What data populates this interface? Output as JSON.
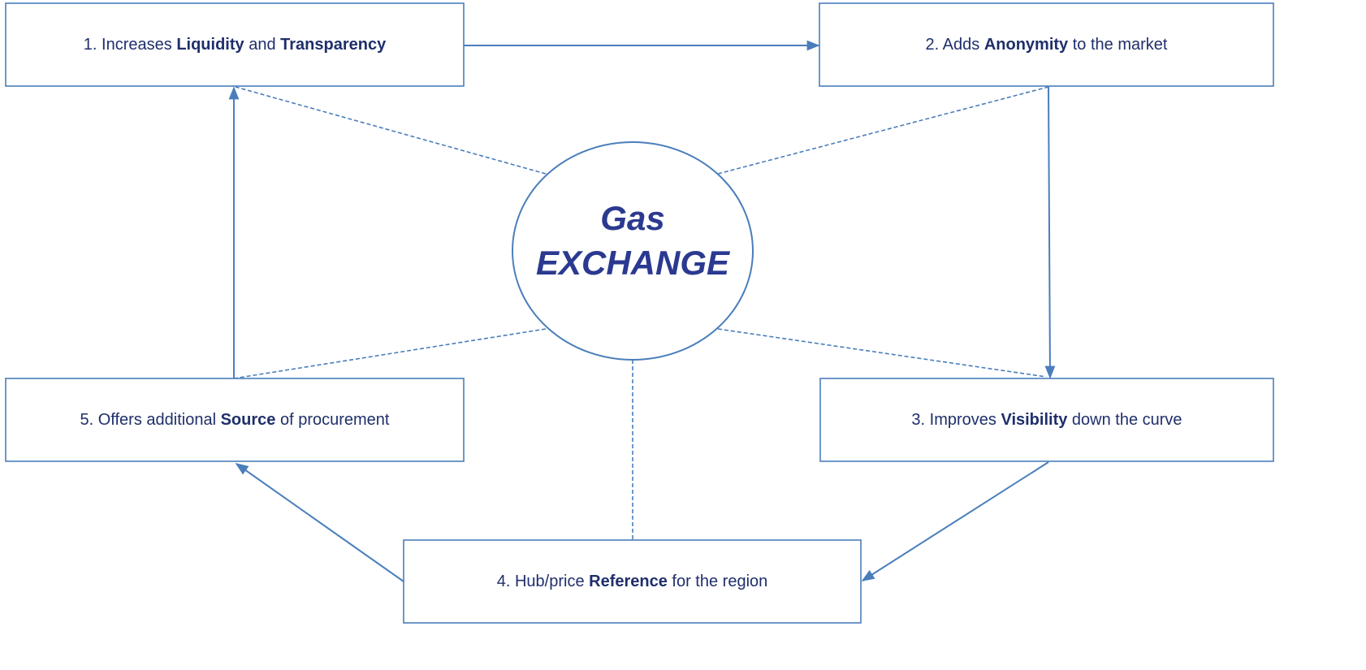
{
  "center": {
    "lines": [
      "Gas",
      "EXCHANGE"
    ]
  },
  "nodes": [
    {
      "parts": [
        {
          "text": "1. Increases "
        },
        {
          "text": "Liquidity",
          "bold": true
        },
        {
          "text": " and "
        },
        {
          "text": "Transparency",
          "bold": true
        }
      ]
    },
    {
      "parts": [
        {
          "text": "2. Adds "
        },
        {
          "text": "Anonymity",
          "bold": true
        },
        {
          "text": " to the market"
        }
      ]
    },
    {
      "parts": [
        {
          "text": "3. Improves "
        },
        {
          "text": "Visibility",
          "bold": true
        },
        {
          "text": " down the curve"
        }
      ]
    },
    {
      "parts": [
        {
          "text": "4. Hub/price "
        },
        {
          "text": "Reference",
          "bold": true
        },
        {
          "text": " for the region"
        }
      ]
    },
    {
      "parts": [
        {
          "text": "5. Offers additional "
        },
        {
          "text": "Source",
          "bold": true
        },
        {
          "text": " of procurement"
        }
      ]
    }
  ]
}
